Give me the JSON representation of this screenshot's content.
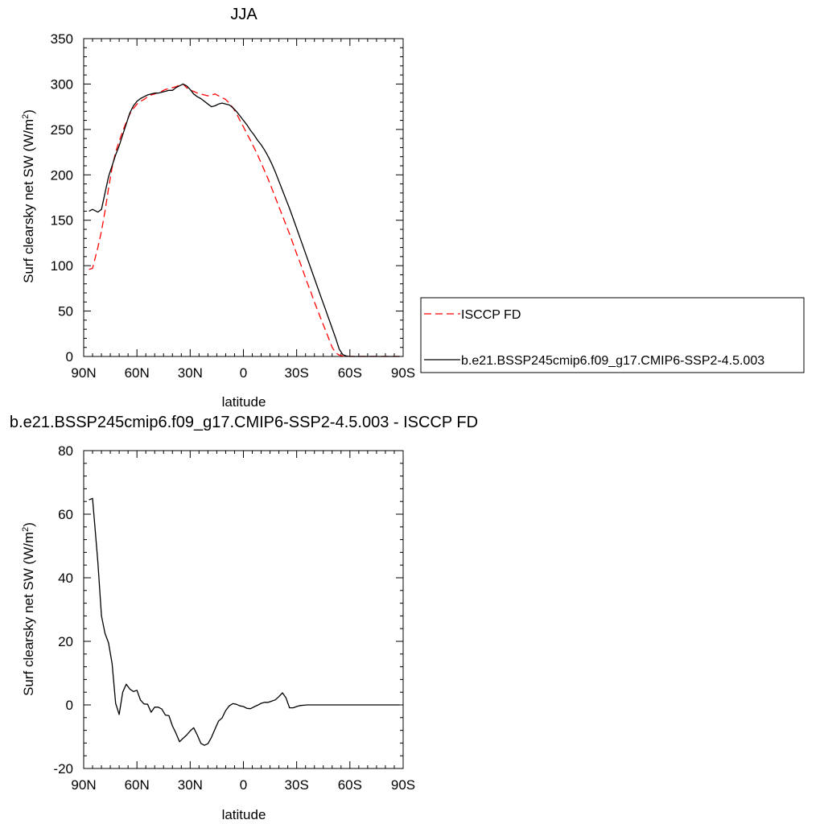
{
  "chart_data": [
    {
      "type": "line",
      "title": "JJA",
      "xlabel": "latitude",
      "ylabel_main": "Surf clearsky net SW (W/m",
      "ylabel_sup": "2",
      "ylabel_end": ")",
      "xlim": [
        90,
        -90
      ],
      "ylim": [
        0,
        350
      ],
      "x_ticks": [
        90,
        60,
        30,
        0,
        -30,
        -60,
        -90
      ],
      "x_tick_labels": [
        "90N",
        "60N",
        "30N",
        "0",
        "30S",
        "60S",
        "90S"
      ],
      "y_ticks": [
        0,
        50,
        100,
        150,
        200,
        250,
        300,
        350
      ],
      "y_tick_labels": [
        "0",
        "50",
        "100",
        "150",
        "200",
        "250",
        "300",
        "350"
      ],
      "legend": "right",
      "series": [
        {
          "name": "ISCCP FD",
          "color": "#ff0000",
          "dash": "dashed",
          "x": [
            87,
            85,
            82,
            80,
            78,
            76,
            74,
            72,
            70,
            68,
            66,
            64,
            62,
            60,
            58,
            56,
            54,
            52,
            50,
            48,
            46,
            44,
            42,
            40,
            38,
            36,
            34,
            32,
            30,
            28,
            26,
            24,
            22,
            20,
            18,
            16,
            14,
            12,
            10,
            8,
            6,
            4,
            2,
            0,
            -2,
            -4,
            -6,
            -8,
            -10,
            -12,
            -14,
            -16,
            -18,
            -20,
            -22,
            -24,
            -26,
            -28,
            -30,
            -32,
            -34,
            -36,
            -38,
            -40,
            -42,
            -44,
            -46,
            -48,
            -50,
            -52,
            -54,
            -56,
            -58,
            -60,
            -62,
            -64,
            -66,
            -68,
            -70,
            -72,
            -74,
            -76,
            -78,
            -80,
            -82,
            -84,
            -86,
            -88
          ],
          "values": [
            96,
            97,
            120,
            138,
            160,
            185,
            208,
            225,
            237,
            248,
            258,
            267,
            273,
            278,
            281,
            283,
            286,
            288,
            289,
            291,
            292,
            294,
            295,
            296,
            297,
            299,
            300,
            296,
            293,
            292,
            290,
            289,
            288,
            287,
            288,
            289,
            287,
            285,
            283,
            279,
            274,
            268,
            260,
            253,
            245,
            238,
            230,
            222,
            213,
            204,
            195,
            185,
            175,
            165,
            155,
            145,
            135,
            124,
            113,
            103,
            92,
            81,
            71,
            60,
            50,
            40,
            30,
            20,
            10,
            4,
            1.5,
            0.5,
            0.2,
            0.1,
            0.1,
            0.1,
            0.1,
            0.1,
            0.1,
            0.1,
            0.1,
            0.1,
            0.1,
            0.1,
            0.1,
            0.1,
            0.1,
            0.1
          ]
        },
        {
          "name": "b.e21.BSSP245cmip6.f09_g17.CMIP6-SSP2-4.5.003",
          "color": "#000000",
          "dash": "solid",
          "x": [
            87,
            85,
            82,
            80,
            78,
            76,
            74,
            72,
            70,
            68,
            66,
            64,
            62,
            60,
            58,
            56,
            54,
            52,
            50,
            48,
            46,
            44,
            42,
            40,
            38,
            36,
            34,
            32,
            30,
            28,
            26,
            24,
            22,
            20,
            18,
            16,
            14,
            12,
            10,
            8,
            6,
            4,
            2,
            0,
            -2,
            -4,
            -6,
            -8,
            -10,
            -12,
            -14,
            -16,
            -18,
            -20,
            -22,
            -24,
            -26,
            -28,
            -30,
            -32,
            -34,
            -36,
            -38,
            -40,
            -42,
            -44,
            -46,
            -48,
            -50,
            -52,
            -54,
            -56,
            -58,
            -60,
            -62,
            -64,
            -66,
            -68,
            -70,
            -72,
            -74,
            -76,
            -78,
            -80,
            -82,
            -84,
            -86,
            -88
          ],
          "values": [
            160,
            162,
            159,
            162,
            180,
            198,
            210,
            222,
            232,
            244,
            256,
            268,
            276,
            281,
            284,
            286,
            288,
            289,
            290,
            290,
            291,
            292,
            293,
            293,
            296,
            298,
            300,
            298,
            294,
            289,
            286,
            284,
            281,
            278,
            275,
            276,
            278,
            279,
            278,
            277,
            274,
            270,
            265,
            260,
            255,
            249,
            244,
            238,
            233,
            227,
            220,
            212,
            203,
            193,
            183,
            173,
            163,
            152,
            141,
            130,
            119,
            108,
            97,
            86,
            75,
            64,
            53,
            42,
            31,
            20,
            8,
            2,
            0.5,
            0,
            0,
            0,
            0,
            0,
            0,
            0,
            0,
            0,
            0,
            0,
            0,
            0,
            0,
            0
          ]
        }
      ]
    },
    {
      "type": "line",
      "title": "b.e21.BSSP245cmip6.f09_g17.CMIP6-SSP2-4.5.003 - ISCCP FD",
      "xlabel": "latitude",
      "ylabel_main": "Surf clearsky net SW (W/m",
      "ylabel_sup": "2",
      "ylabel_end": ")",
      "xlim": [
        90,
        -90
      ],
      "ylim": [
        -20,
        80
      ],
      "x_ticks": [
        90,
        60,
        30,
        0,
        -30,
        -60,
        -90
      ],
      "x_tick_labels": [
        "90N",
        "60N",
        "30N",
        "0",
        "30S",
        "60S",
        "90S"
      ],
      "y_ticks": [
        -20,
        0,
        20,
        40,
        60,
        80
      ],
      "y_tick_labels": [
        "-20",
        "0",
        "20",
        "40",
        "60",
        "80"
      ],
      "series": [
        {
          "color": "#000000",
          "dash": "solid",
          "x": [
            87,
            85,
            82,
            80,
            78,
            76,
            74,
            72,
            70,
            68,
            66,
            64,
            62,
            60,
            58,
            56,
            54,
            52,
            50,
            48,
            46,
            44,
            42,
            40,
            38,
            36,
            34,
            32,
            30,
            28,
            26,
            24,
            22,
            20,
            18,
            16,
            14,
            12,
            10,
            8,
            6,
            4,
            2,
            0,
            -2,
            -4,
            -6,
            -8,
            -10,
            -12,
            -14,
            -16,
            -18,
            -20,
            -22,
            -24,
            -26,
            -28,
            -30,
            -32,
            -34,
            -36,
            -38,
            -40,
            -42,
            -44,
            -46,
            -48,
            -50,
            -52,
            -54,
            -56,
            -58,
            -60,
            -62,
            -64,
            -66,
            -68,
            -70,
            -72,
            -74,
            -76,
            -78,
            -80,
            -82,
            -84,
            -86,
            -88
          ],
          "values": [
            64.5,
            65,
            45,
            28,
            22.5,
            19.5,
            13,
            0.5,
            -3,
            4,
            6.5,
            5,
            4.2,
            4.6,
            1.5,
            0.3,
            0.2,
            -2.3,
            -0.7,
            -0.7,
            -1.3,
            -3.2,
            -3.4,
            -6.6,
            -8.9,
            -11.6,
            -10.5,
            -9.5,
            -8.2,
            -7.2,
            -9.5,
            -12.1,
            -12.7,
            -12.2,
            -10.2,
            -7.6,
            -5.1,
            -4.1,
            -1.8,
            -0.3,
            0.4,
            0.2,
            -0.3,
            -0.5,
            -1.1,
            -1.2,
            -0.6,
            -0.1,
            0.5,
            0.8,
            0.8,
            1.2,
            1.6,
            2.6,
            3.8,
            2.2,
            -0.9,
            -0.9,
            -0.5,
            -0.2,
            -0.1,
            0,
            0,
            0,
            0,
            0,
            0,
            0,
            0,
            0,
            0,
            0,
            0,
            0,
            0,
            0,
            0,
            0,
            0,
            0,
            0,
            0,
            0,
            0,
            0,
            0,
            0,
            0
          ]
        }
      ]
    }
  ]
}
